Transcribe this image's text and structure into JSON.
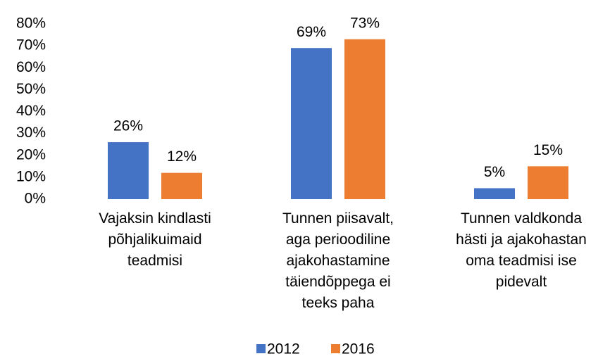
{
  "chart_data": {
    "type": "bar",
    "categories": [
      "Vajaksin kindlasti\npõhjalikuimaid\nteadmisi",
      "Tunnen piisavalt,\naga perioodiline\najakohastamine\ntäiendõppega ei\nteeks paha",
      "Tunnen valdkonda\nhästi ja ajakohastan\noma teadmisi ise\npidevalt"
    ],
    "series": [
      {
        "name": "2012",
        "color": "#4472c4",
        "values": [
          26,
          69,
          5
        ],
        "value_labels": [
          "26%",
          "69%",
          "5%"
        ]
      },
      {
        "name": "2016",
        "color": "#ed7d31",
        "values": [
          12,
          73,
          15
        ],
        "value_labels": [
          "12%",
          "73%",
          "15%"
        ]
      }
    ],
    "ylim": [
      0,
      80
    ],
    "yticks": [
      {
        "value": 0,
        "label": "0%"
      },
      {
        "value": 10,
        "label": "10%"
      },
      {
        "value": 20,
        "label": "20%"
      },
      {
        "value": 30,
        "label": "30%"
      },
      {
        "value": 40,
        "label": "40%"
      },
      {
        "value": 50,
        "label": "50%"
      },
      {
        "value": 60,
        "label": "60%"
      },
      {
        "value": 70,
        "label": "70%"
      },
      {
        "value": 80,
        "label": "80%"
      }
    ],
    "grid": false,
    "legend": "bottom"
  }
}
